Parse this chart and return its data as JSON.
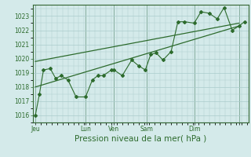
{
  "background_color": "#d4eaea",
  "grid_color": "#aacccc",
  "line_color": "#2d6b2d",
  "spine_color": "#336633",
  "title": "Pression niveau de la mer( hPa )",
  "ylim": [
    1015.5,
    1023.8
  ],
  "yticks": [
    1016,
    1017,
    1018,
    1019,
    1020,
    1021,
    1022,
    1023
  ],
  "xtick_positions": [
    0.0,
    0.37,
    0.58,
    0.82,
    1.17,
    1.5
  ],
  "xtick_labels": [
    "Jeu",
    "Lun",
    "Ven",
    "Sam",
    "Dim",
    ""
  ],
  "series_t": [
    0.0,
    0.03,
    0.06,
    0.11,
    0.15,
    0.19,
    0.24,
    0.3,
    0.37,
    0.42,
    0.46,
    0.5,
    0.56,
    0.58,
    0.64,
    0.71,
    0.76,
    0.81,
    0.85,
    0.89,
    0.94,
    1.0,
    1.05,
    1.1,
    1.17,
    1.22,
    1.28,
    1.34,
    1.39,
    1.45,
    1.5,
    1.54
  ],
  "series_y": [
    1016.0,
    1017.5,
    1019.2,
    1019.3,
    1018.6,
    1018.8,
    1018.5,
    1017.3,
    1017.3,
    1018.5,
    1018.8,
    1018.8,
    1019.2,
    1019.2,
    1018.8,
    1019.9,
    1019.5,
    1019.2,
    1020.3,
    1020.4,
    1019.9,
    1020.5,
    1022.6,
    1022.6,
    1022.5,
    1023.3,
    1023.2,
    1022.8,
    1023.6,
    1022.0,
    1022.3,
    1022.6
  ],
  "trend1_t": [
    0.0,
    1.5
  ],
  "trend1_y": [
    1018.0,
    1022.3
  ],
  "trend2_t": [
    0.0,
    1.5
  ],
  "trend2_y": [
    1019.8,
    1022.5
  ],
  "vlines_t": [
    0.0,
    0.37,
    0.58,
    0.82,
    1.17,
    1.5
  ],
  "ylabel_fontsize": 5.5,
  "xlabel_fontsize": 5.5,
  "title_fontsize": 7.5,
  "figsize": [
    3.2,
    2.0
  ],
  "dpi": 100
}
